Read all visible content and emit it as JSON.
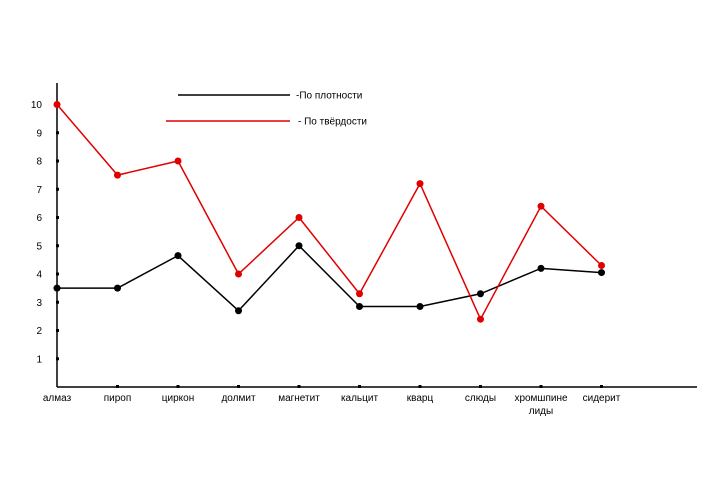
{
  "chart_data": {
    "type": "line",
    "categories": [
      "алмаз",
      "пироп",
      "циркон",
      "долмит",
      "магнетит",
      "кальцит",
      "кварц",
      "слюды",
      "хромшпинелиды",
      "сидерит"
    ],
    "category_label_lines": [
      [
        "алмаз"
      ],
      [
        "пироп"
      ],
      [
        "циркон"
      ],
      [
        "долмит"
      ],
      [
        "магнетит"
      ],
      [
        "кальцит"
      ],
      [
        "кварц"
      ],
      [
        "слюды"
      ],
      [
        "хромшпине",
        "лиды"
      ],
      [
        "сидерит"
      ]
    ],
    "series": [
      {
        "name": "-По плотности",
        "color": "#000000",
        "values": [
          3.5,
          3.5,
          4.65,
          2.7,
          5.0,
          2.85,
          2.85,
          3.3,
          4.2,
          4.05
        ]
      },
      {
        "name": "- По твёрдости",
        "color": "#e00000",
        "values": [
          10,
          7.5,
          8,
          4,
          6,
          3.3,
          7.2,
          2.4,
          6.4,
          4.3
        ]
      }
    ],
    "y_ticks": [
      1,
      2,
      3,
      4,
      5,
      6,
      7,
      8,
      9,
      10
    ],
    "ylim": [
      0,
      10.5
    ],
    "grid": false,
    "legend_position": "top-center",
    "title": "",
    "xlabel": "",
    "ylabel": ""
  }
}
